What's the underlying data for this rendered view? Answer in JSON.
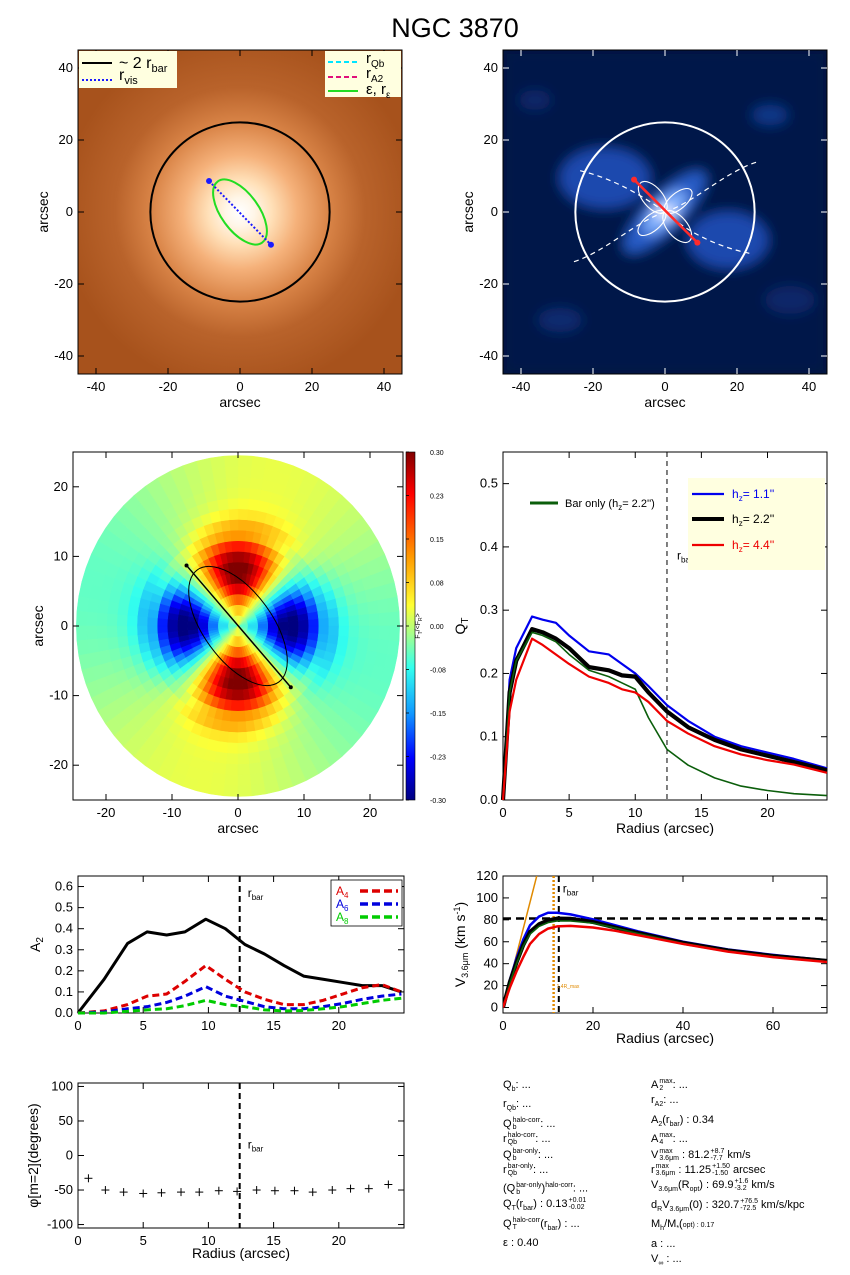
{
  "title": "NGC 3870",
  "chart_data": [
    {
      "id": "p1",
      "type": "heatmap",
      "description_labels": {
        "xlabel": "arcsec",
        "ylabel": "arcsec"
      },
      "xlim": [
        -45,
        45
      ],
      "ylim": [
        -45,
        45
      ],
      "xticks": [
        -40,
        -20,
        0,
        20,
        40
      ],
      "yticks": [
        -40,
        -20,
        0,
        20,
        40
      ],
      "legend_left": [
        {
          "label": "~ 2 r",
          "sub": "bar",
          "color": "#000000",
          "style": "solid"
        },
        {
          "label": "r",
          "sub": "vis",
          "color": "#1a1aff",
          "style": "dotted"
        }
      ],
      "legend_right": [
        {
          "label": "r",
          "sub": "Qb",
          "color": "#00e5ff",
          "style": "dashed"
        },
        {
          "label": "r",
          "sub": "A2",
          "color": "#e0107a",
          "style": "dashed"
        },
        {
          "label": "ε, r",
          "sub": "ε",
          "color": "#22dd22",
          "style": "solid"
        }
      ],
      "circle_radius": 24.9,
      "ellipse": {
        "a": 10.5,
        "b": 5.2,
        "pa_deg": 54
      },
      "vis_line": [
        [
          -8.6,
          8.6
        ],
        [
          8.6,
          -9.1
        ]
      ]
    },
    {
      "id": "p2",
      "type": "heatmap",
      "xlabel": "arcsec",
      "ylabel": "arcsec",
      "xlim": [
        -45,
        45
      ],
      "ylim": [
        -45,
        45
      ],
      "xticks": [
        -40,
        -20,
        0,
        20,
        40
      ],
      "yticks": [
        -40,
        -20,
        0,
        20,
        40
      ],
      "circle_radius": 24.9,
      "bar_line": [
        [
          -8.6,
          9.0
        ],
        [
          9.0,
          -8.5
        ]
      ]
    },
    {
      "id": "p3",
      "type": "heatmap",
      "xlabel": "arcsec",
      "ylabel": "arcsec",
      "xlim": [
        -25,
        25
      ],
      "ylim": [
        -25,
        25
      ],
      "xticks": [
        -20,
        -10,
        0,
        10,
        20
      ],
      "yticks": [
        -20,
        -10,
        0,
        10,
        20
      ],
      "colorbar_label": "F_T/<F_R>",
      "colorbar_ticks": [
        "0.30",
        "0.23",
        "0.15",
        "0.08",
        "0.00",
        "-0.08",
        "-0.15",
        "-0.23",
        "-0.30"
      ],
      "colorbar_range": [
        -0.3,
        0.3
      ],
      "disk_radius": 24.5,
      "ellipse": {
        "a": 10.5,
        "b": 5.2,
        "pa_deg": 54
      },
      "bar_line": [
        [
          -7.8,
          8.7
        ],
        [
          8.0,
          -8.8
        ]
      ]
    },
    {
      "id": "p4",
      "type": "line",
      "xlabel": "Radius (arcsec)",
      "ylabel": "Q_T",
      "xlim": [
        0,
        24.5
      ],
      "ylim": [
        0,
        0.55
      ],
      "xticks": [
        0,
        5,
        10,
        15,
        20
      ],
      "yticks": [
        0.0,
        0.1,
        0.2,
        0.3,
        0.4,
        0.5
      ],
      "rbar": 12.4,
      "rbar_label": "r",
      "rbar_sub": "bar",
      "legend_left": {
        "label": "Bar only (h",
        "sub": "z",
        "tail": "=   2.2'')",
        "color": "#0b5e0b"
      },
      "legend_right": [
        {
          "label": "h",
          "sub": "z",
          "tail": "=   1.1''",
          "color": "#0000ee",
          "width": 2.2
        },
        {
          "label": "h",
          "sub": "z",
          "tail": "=   2.2''",
          "color": "#000000",
          "width": 4
        },
        {
          "label": "h",
          "sub": "z",
          "tail": "=   4.4''",
          "color": "#ee0000",
          "width": 2.2
        }
      ],
      "x": [
        0,
        0.5,
        1.0,
        2.2,
        3.0,
        4.0,
        5.0,
        6.5,
        8.0,
        9.0,
        10.0,
        11.0,
        12.4,
        14.0,
        16.0,
        18.0,
        20.0,
        22.0,
        24.5
      ],
      "series": [
        {
          "name": "h_z = 1.1''",
          "color": "#0000ee",
          "width": 2.2,
          "values": [
            0,
            0.19,
            0.24,
            0.29,
            0.285,
            0.28,
            0.26,
            0.235,
            0.23,
            0.215,
            0.2,
            0.18,
            0.15,
            0.125,
            0.1,
            0.085,
            0.075,
            0.065,
            0.05
          ]
        },
        {
          "name": "h_z = 2.2''",
          "color": "#000000",
          "width": 4.2,
          "values": [
            0,
            0.17,
            0.22,
            0.27,
            0.265,
            0.255,
            0.24,
            0.21,
            0.205,
            0.197,
            0.195,
            0.17,
            0.14,
            0.115,
            0.095,
            0.08,
            0.07,
            0.06,
            0.047
          ]
        },
        {
          "name": "Bar only (h_z = 2.2'')",
          "color": "#0b5e0b",
          "width": 1.6,
          "values": [
            0,
            0.17,
            0.22,
            0.265,
            0.26,
            0.25,
            0.23,
            0.205,
            0.195,
            0.185,
            0.175,
            0.13,
            0.08,
            0.055,
            0.035,
            0.022,
            0.015,
            0.01,
            0.007
          ]
        },
        {
          "name": "h_z = 4.4''",
          "color": "#ee0000",
          "width": 2.2,
          "values": [
            0,
            0.14,
            0.19,
            0.255,
            0.245,
            0.23,
            0.215,
            0.195,
            0.185,
            0.175,
            0.17,
            0.155,
            0.125,
            0.105,
            0.085,
            0.072,
            0.063,
            0.056,
            0.043
          ]
        }
      ]
    },
    {
      "id": "p5",
      "type": "line",
      "xlabel": "",
      "ylabel": "A_2",
      "xlim": [
        0,
        25
      ],
      "ylim": [
        0,
        0.65
      ],
      "xticks": [
        0,
        5,
        10,
        15,
        20
      ],
      "yticks": [
        0.0,
        0.1,
        0.2,
        0.3,
        0.4,
        0.5,
        0.6
      ],
      "rbar": 12.4,
      "rbar_label": "r",
      "rbar_sub": "bar",
      "x": [
        0,
        2,
        3.8,
        5.3,
        6.8,
        8.2,
        9.8,
        11.3,
        12.8,
        14.3,
        15.8,
        17.3,
        18.8,
        20.3,
        21.8,
        23.3,
        24.8
      ],
      "series": [
        {
          "name": "A_2",
          "color": "#000000",
          "width": 3,
          "dash": "",
          "values": [
            0,
            0.16,
            0.33,
            0.385,
            0.37,
            0.385,
            0.445,
            0.4,
            0.325,
            0.28,
            0.225,
            0.175,
            0.16,
            0.145,
            0.13,
            0.13,
            0.1
          ]
        },
        {
          "name": "A_4",
          "color": "#dd0000",
          "width": 3,
          "dash": "7,4",
          "values": [
            0,
            0.01,
            0.04,
            0.08,
            0.09,
            0.15,
            0.225,
            0.16,
            0.1,
            0.065,
            0.04,
            0.04,
            0.06,
            0.09,
            0.12,
            0.135,
            0.1
          ]
        },
        {
          "name": "A_6",
          "color": "#0000dd",
          "width": 3,
          "dash": "7,4",
          "values": [
            0,
            0.005,
            0.02,
            0.03,
            0.05,
            0.08,
            0.125,
            0.08,
            0.055,
            0.03,
            0.02,
            0.02,
            0.03,
            0.045,
            0.065,
            0.08,
            0.09
          ]
        },
        {
          "name": "A_8",
          "color": "#00cc00",
          "width": 3,
          "dash": "7,4",
          "values": [
            0,
            0.0,
            0.008,
            0.015,
            0.02,
            0.035,
            0.06,
            0.04,
            0.03,
            0.015,
            0.01,
            0.012,
            0.02,
            0.03,
            0.045,
            0.06,
            0.07
          ]
        }
      ],
      "legend": [
        {
          "label": "A",
          "sub": "4",
          "color": "#dd0000"
        },
        {
          "label": "A",
          "sub": "6",
          "color": "#0000dd"
        },
        {
          "label": "A",
          "sub": "8",
          "color": "#00cc00"
        }
      ]
    },
    {
      "id": "p6",
      "type": "line",
      "xlabel": "Radius (arcsec)",
      "ylabel": "V_3.6μm (km s^-1)",
      "xlim": [
        0,
        72
      ],
      "ylim": [
        -5,
        120
      ],
      "xticks": [
        0,
        20,
        40,
        60
      ],
      "yticks": [
        0,
        20,
        40,
        60,
        80,
        100,
        120
      ],
      "rbar": 12.4,
      "rbar_label": "r",
      "rbar_sub": "bar",
      "vmax_level": 81.2,
      "rmax_line": 11.25,
      "rmax_label": "1.4R_max",
      "orange_line": [
        [
          0,
          0
        ],
        [
          7.5,
          120
        ]
      ],
      "x": [
        0,
        1.5,
        3,
        4.5,
        6,
        8,
        10,
        12,
        15,
        20,
        25,
        30,
        40,
        50,
        60,
        72
      ],
      "series": [
        {
          "name": "h_z = 1.1''",
          "color": "#0000ee",
          "width": 2.5,
          "values": [
            0,
            25,
            45,
            62,
            75,
            83,
            86.5,
            86.5,
            85,
            80.5,
            75,
            69.5,
            60,
            53,
            48,
            43
          ]
        },
        {
          "name": "h_z = 2.2''",
          "color": "#000000",
          "width": 4,
          "values": [
            0,
            23,
            41,
            57,
            69,
            76,
            79.5,
            81.2,
            81,
            78,
            73,
            68,
            59,
            52,
            47,
            42.5
          ]
        },
        {
          "name": "bar only",
          "color": "#0b5e0b",
          "width": 1.6,
          "values": [
            0,
            22,
            40,
            56,
            67,
            74,
            77.5,
            79,
            79,
            77,
            72.5,
            67.5,
            58.5,
            51.5,
            46.5,
            42
          ]
        },
        {
          "name": "h_z = 4.4''",
          "color": "#ee0000",
          "width": 2.5,
          "values": [
            0,
            18,
            33,
            46,
            58,
            67,
            72,
            74,
            74.5,
            73,
            70,
            66,
            58,
            51,
            46,
            41.5
          ]
        }
      ]
    },
    {
      "id": "p7",
      "type": "scatter",
      "xlabel": "Radius (arcsec)",
      "ylabel": "φ[m=2](degrees)",
      "xlim": [
        0,
        25
      ],
      "ylim": [
        -105,
        105
      ],
      "xticks": [
        0,
        5,
        10,
        15,
        20
      ],
      "yticks": [
        -100,
        -50,
        0,
        50,
        100
      ],
      "rbar": 12.4,
      "rbar_label": "r",
      "rbar_sub": "bar",
      "x": [
        0.8,
        2.1,
        3.5,
        5.0,
        6.4,
        7.9,
        9.3,
        10.8,
        12.2,
        13.7,
        15.1,
        16.6,
        18.0,
        19.5,
        20.9,
        22.3,
        23.8
      ],
      "y": [
        -33,
        -50,
        -53,
        -55,
        -54,
        -53,
        -53,
        -51,
        -52,
        -50,
        -51,
        -51,
        -53,
        -50,
        -48,
        -48,
        -42
      ]
    }
  ],
  "params_left": [
    {
      "k": "Q",
      "sub": "b",
      "v": ": ..."
    },
    {
      "k": "r",
      "sub": "Qb",
      "v": ": ..."
    },
    {
      "k": "Q",
      "sub": "b",
      "sup": "halo-corr",
      "v": ": ..."
    },
    {
      "k": "r",
      "sub": "Qb",
      "sup": "halo-corr",
      "v": ": ..."
    },
    {
      "k": "Q",
      "sub": "b",
      "sup": "bar-only",
      "v": ": ..."
    },
    {
      "k": "r",
      "sub": "Qb",
      "sup": "bar-only",
      "v": ": ..."
    },
    {
      "k": "(Q",
      "sub": "b",
      "sup": "bar-only",
      "tail": ")",
      "tailsup": "halo-corr",
      "v": ": ..."
    },
    {
      "k": "Q",
      "sub": "T",
      "sup": "",
      "tail": "(r",
      "tailsub": "bar",
      "v": ") :  0.13",
      "vsup": "+0.01",
      "vsub": "-0.02"
    },
    {
      "k": "Q",
      "sub": "T",
      "sup": "halo-corr",
      "tail": "(r",
      "tailsub": "bar",
      "v": ") : ..."
    },
    {
      "k": "ε",
      "v": " :  0.40"
    }
  ],
  "params_right": [
    {
      "k": "A",
      "sub": "2",
      "sup": "max",
      "v": ": ..."
    },
    {
      "k": "r",
      "sub": "A2",
      "v": ": ..."
    },
    {
      "k": "A",
      "sub": "2",
      "tail": "(r",
      "tailsub": "bar",
      "v": ") :  0.34"
    },
    {
      "k": "A",
      "sub": "4",
      "sup": "max",
      "v": ": ..."
    },
    {
      "k": "V",
      "sub": "3.6μm",
      "sup": "max",
      "v": " :  81.2",
      "vsup": "+8.7",
      "vsub": "-7.7",
      "vtail": " km/s"
    },
    {
      "k": "r",
      "sub": "3.6μm",
      "sup": "max",
      "v": " :  11.25",
      "vsup": "+1.50",
      "vsub": "-1.50",
      "vtail": " arcsec"
    },
    {
      "k": "V",
      "sub": "3.6μm",
      "tail": "(R",
      "tailsub": "opt",
      "v": ") :  69.9",
      "vsup": "+1.6",
      "vsub": "-3.2",
      "vtail": " km/s"
    },
    {
      "k": "d",
      "sub": "R",
      "tail": "V",
      "tailsub": "3.6μm",
      "v": "(0) :  320.7",
      "vsup": "+76.5",
      "vsub": "-72.5",
      "vtail": " km/s/kpc"
    },
    {
      "k": "M",
      "sub": "h",
      "tail": "/M",
      "tailsub": "*",
      "v": "(<R",
      "vsub2": "opt",
      "vtail2": ") :  0.17"
    },
    {
      "k": "a",
      "v": " : ..."
    },
    {
      "k": "V",
      "sub": "∞",
      "v": " : ..."
    }
  ]
}
